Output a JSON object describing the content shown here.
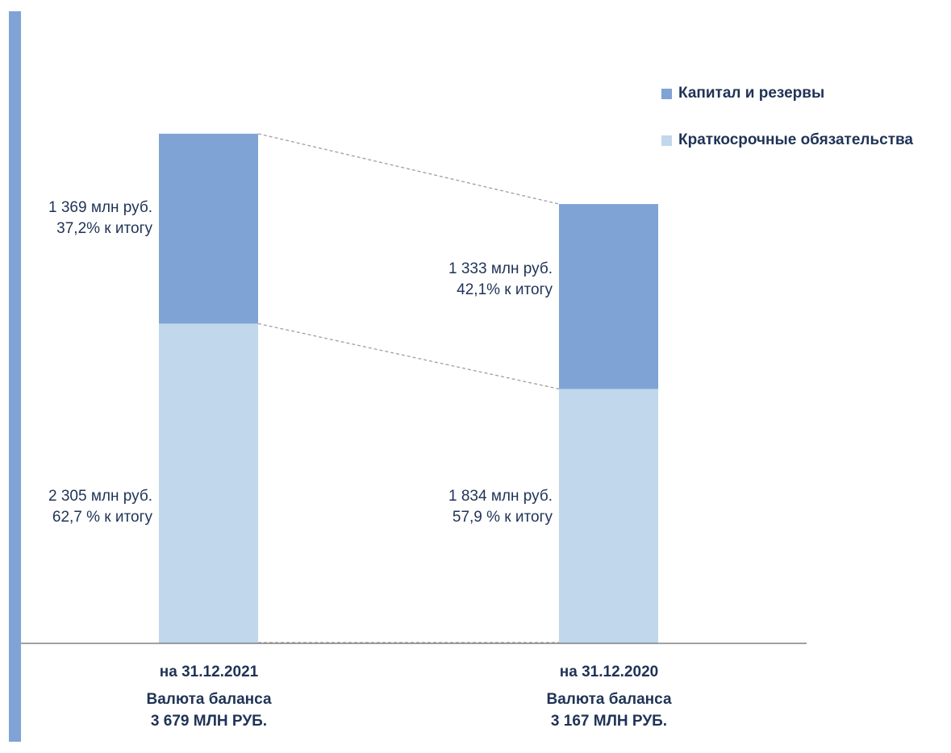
{
  "chart_data": {
    "type": "bar",
    "stacked": true,
    "categories": [
      "на 31.12.2021",
      "на 31.12.2020"
    ],
    "series": [
      {
        "name": "Краткосрочные обязательства",
        "color": "#c0d7ec",
        "values": [
          2305,
          1834
        ],
        "labels": [
          [
            "2 305 млн руб.",
            "62,7 % к итогу"
          ],
          [
            "1 834 млн руб.",
            "57,9 % к итогу"
          ]
        ]
      },
      {
        "name": "Капитал и резервы",
        "color": "#7fa3d5",
        "values": [
          1369,
          1333
        ],
        "labels": [
          [
            "1 369 млн руб.",
            "37,2% к итогу"
          ],
          [
            "1 333 млн руб.",
            "42,1% к итогу"
          ]
        ]
      }
    ],
    "totals": [
      {
        "title": "Валюта баланса",
        "value": "3 679 МЛН РУБ."
      },
      {
        "title": "Валюта баланса",
        "value": "3 167 МЛН РУБ."
      }
    ],
    "legend": {
      "position": "top-right",
      "items": [
        {
          "label": "Капитал и резервы",
          "color": "#7fa3d5"
        },
        {
          "label": "Краткосрочные обязательства",
          "color": "#c0d7ec"
        }
      ]
    },
    "ylim": [
      0,
      3679
    ],
    "grid": false,
    "connector_lines": "dashed",
    "axis_color": "#808080",
    "accent_bar_color": "#7fa3d5"
  }
}
